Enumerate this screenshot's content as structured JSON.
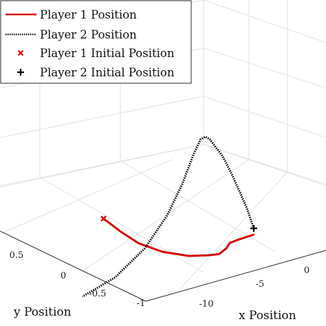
{
  "chart_data": {
    "type": "line",
    "subtype": "3d-trajectory",
    "title": "",
    "xlabel": "x Position",
    "ylabel": "y Position",
    "zlabel": "",
    "x_ticks": [
      "-10",
      "-5",
      "0"
    ],
    "y_ticks": [
      "0.5",
      "0",
      "-0.5",
      "-1"
    ],
    "grid": true,
    "legend_position": "top-left",
    "series": [
      {
        "name": "Player 1 Position",
        "style": "solid",
        "color": "#d40000",
        "points": [
          {
            "x": -11.5,
            "y": -0.95,
            "z": 0.62
          },
          {
            "x": -10.6,
            "y": -0.9,
            "z": 0.47
          },
          {
            "x": -9.6,
            "y": -0.8,
            "z": 0.32
          },
          {
            "x": -8.4,
            "y": -0.65,
            "z": 0.2
          },
          {
            "x": -7.1,
            "y": -0.45,
            "z": 0.12
          },
          {
            "x": -6.2,
            "y": -0.28,
            "z": 0.1
          },
          {
            "x": -5.7,
            "y": -0.15,
            "z": 0.1
          },
          {
            "x": -5.4,
            "y": -0.05,
            "z": 0.15
          },
          {
            "x": -5.3,
            "y": 0.02,
            "z": 0.2
          },
          {
            "x": -4.8,
            "y": 0.05,
            "z": 0.21
          },
          {
            "x": -4.0,
            "y": 0.1,
            "z": 0.22
          }
        ]
      },
      {
        "name": "Player 2 Position",
        "style": "dotted",
        "color": "#000000",
        "points": [
          {
            "x": -2.5,
            "y": -0.9,
            "z": 0.1
          },
          {
            "x": -3.0,
            "y": -0.82,
            "z": 0.3
          },
          {
            "x": -3.6,
            "y": -0.72,
            "z": 0.5
          },
          {
            "x": -4.3,
            "y": -0.6,
            "z": 0.72
          },
          {
            "x": -5.0,
            "y": -0.48,
            "z": 0.92
          },
          {
            "x": -5.6,
            "y": -0.38,
            "z": 1.05
          },
          {
            "x": -6.0,
            "y": -0.33,
            "z": 1.14
          },
          {
            "x": -6.3,
            "y": -0.3,
            "z": 1.18
          },
          {
            "x": -6.6,
            "y": -0.3,
            "z": 1.17
          },
          {
            "x": -7.0,
            "y": -0.32,
            "z": 1.05
          },
          {
            "x": -7.6,
            "y": -0.38,
            "z": 0.8
          },
          {
            "x": -8.4,
            "y": -0.45,
            "z": 0.55
          },
          {
            "x": -9.6,
            "y": -0.55,
            "z": 0.3
          },
          {
            "x": -11.2,
            "y": -0.68,
            "z": 0.1
          },
          {
            "x": -13.0,
            "y": -0.8,
            "z": 0.0
          }
        ]
      }
    ],
    "markers": [
      {
        "name": "Player 1 Initial Position",
        "symbol": "x",
        "color": "#d40000",
        "x": -11.5,
        "y": -0.95,
        "z": 0.62
      },
      {
        "name": "Player 2 Initial Position",
        "symbol": "+",
        "color": "#000000",
        "x": -2.5,
        "y": -0.9,
        "z": 0.1
      }
    ]
  }
}
